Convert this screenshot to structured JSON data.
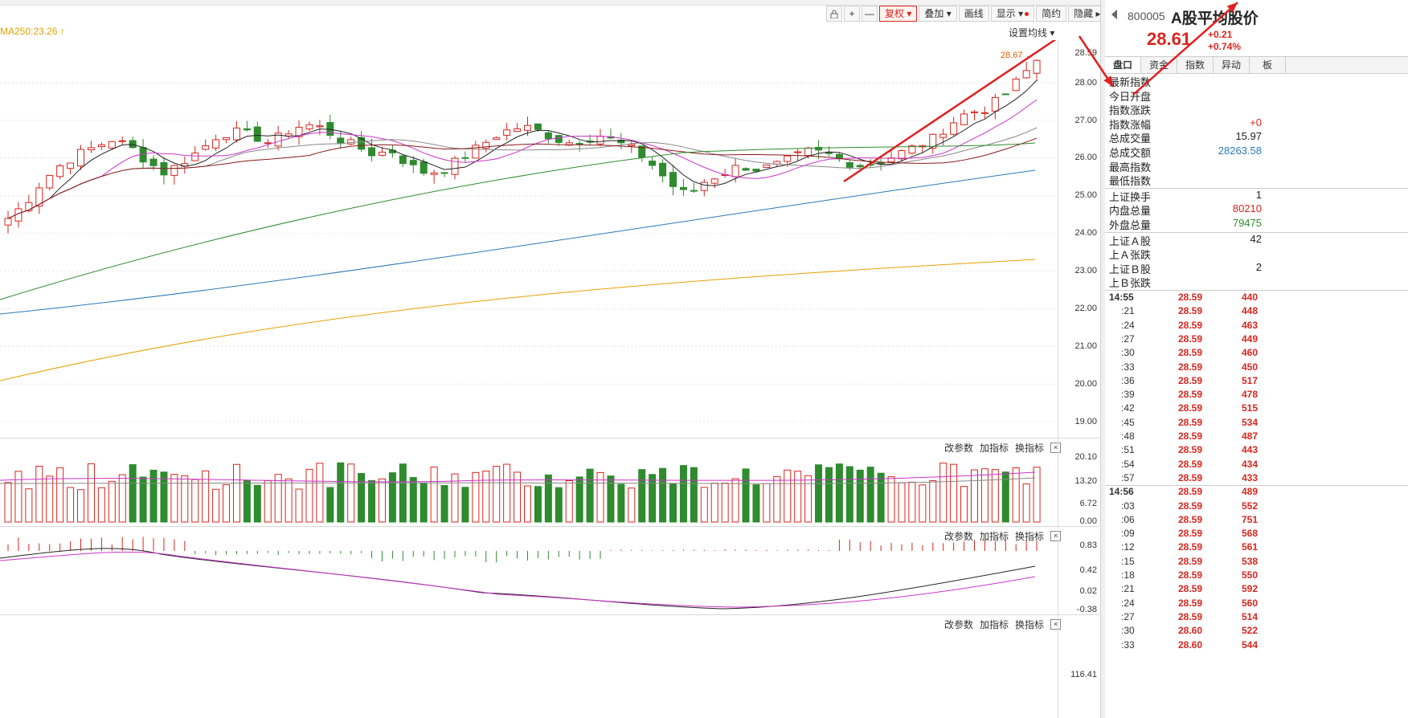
{
  "toolbar": {
    "lock_icon": "lock-icon",
    "zoom_in": "+",
    "zoom_out": "—",
    "fuquan": "复权",
    "diejia": "叠加",
    "huaxian": "画线",
    "xianshi": "显示",
    "jianyue": "简约",
    "yincang": "隐藏",
    "expand_icon": "fullscreen-icon"
  },
  "ma_label": "MA250:23.26 ↑",
  "set_ma": "设置均线 ▾",
  "high_marker": "28.67 →",
  "price_axis": [
    "28.59",
    "28.00",
    "27.00",
    "26.00",
    "25.00",
    "24.00",
    "23.00",
    "22.00",
    "21.00",
    "20.00",
    "19.00"
  ],
  "vol_axis": [
    "20.10",
    "13.20",
    "6.72",
    "0.00"
  ],
  "macd_axis": [
    "0.83",
    "0.42",
    "0.02",
    "-0.38"
  ],
  "bottom_axis": [
    "116.41"
  ],
  "panel_buttons": {
    "gaicanshu": "改参数",
    "jiazhibiao": "加指标",
    "huanzhibiao": "换指标",
    "close": "×"
  },
  "colors": {
    "up": "#d8261e",
    "down": "#2e8b2e",
    "ma5": "#222222",
    "ma10": "#cc33cc",
    "ma20": "#888888",
    "ma30": "#8b1a1a",
    "ma60": "#2e8b2e",
    "ma120": "#2a7ab8",
    "ma250": "#e6a000",
    "annot": "#e02020"
  },
  "quote": {
    "code": "800005",
    "name": "A股平均股价",
    "price": "28.61",
    "change": "+0.21",
    "change_pct": "+0.74%",
    "tabs": [
      "盘口",
      "资金",
      "指数",
      "异动",
      "板"
    ],
    "stats1": [
      {
        "label": "最新指数",
        "value": ""
      },
      {
        "label": "今日开盘",
        "value": ""
      },
      {
        "label": "指数涨跌",
        "value": ""
      },
      {
        "label": "指数涨幅",
        "value": "+0"
      },
      {
        "label": "总成交量",
        "value": "15.97"
      },
      {
        "label": "总成交额",
        "value": "28263.58"
      },
      {
        "label": "最高指数",
        "value": ""
      },
      {
        "label": "最低指数",
        "value": ""
      }
    ],
    "stats2": [
      {
        "label": "上证换手",
        "value": "1"
      },
      {
        "label": "内盘总量",
        "value": "80210"
      },
      {
        "label": "外盘总量",
        "value": "79475"
      }
    ],
    "stats3": [
      {
        "label": "上证Ａ股",
        "value": "42"
      },
      {
        "label": "上Ａ张跌",
        "value": ""
      },
      {
        "label": "上证Ｂ股",
        "value": "2"
      },
      {
        "label": "上Ｂ张跌",
        "value": ""
      }
    ],
    "ticks": [
      {
        "t": "14:55",
        "p": "28.59",
        "v": "440",
        "bold": true
      },
      {
        "t": ":21",
        "p": "28.59",
        "v": "448"
      },
      {
        "t": ":24",
        "p": "28.59",
        "v": "463"
      },
      {
        "t": ":27",
        "p": "28.59",
        "v": "449"
      },
      {
        "t": ":30",
        "p": "28.59",
        "v": "460"
      },
      {
        "t": ":33",
        "p": "28.59",
        "v": "450"
      },
      {
        "t": ":36",
        "p": "28.59",
        "v": "517"
      },
      {
        "t": ":39",
        "p": "28.59",
        "v": "478"
      },
      {
        "t": ":42",
        "p": "28.59",
        "v": "515"
      },
      {
        "t": ":45",
        "p": "28.59",
        "v": "534"
      },
      {
        "t": ":48",
        "p": "28.59",
        "v": "487"
      },
      {
        "t": ":51",
        "p": "28.59",
        "v": "443"
      },
      {
        "t": ":54",
        "p": "28.59",
        "v": "434"
      },
      {
        "t": ":57",
        "p": "28.59",
        "v": "433"
      },
      {
        "t": "14:56",
        "p": "28.59",
        "v": "489",
        "bold": true
      },
      {
        "t": ":03",
        "p": "28.59",
        "v": "552"
      },
      {
        "t": ":06",
        "p": "28.59",
        "v": "751"
      },
      {
        "t": ":09",
        "p": "28.59",
        "v": "568"
      },
      {
        "t": ":12",
        "p": "28.59",
        "v": "561"
      },
      {
        "t": ":15",
        "p": "28.59",
        "v": "538"
      },
      {
        "t": ":18",
        "p": "28.59",
        "v": "550"
      },
      {
        "t": ":21",
        "p": "28.59",
        "v": "592"
      },
      {
        "t": ":24",
        "p": "28.59",
        "v": "560"
      },
      {
        "t": ":27",
        "p": "28.59",
        "v": "514"
      },
      {
        "t": ":30",
        "p": "28.60",
        "v": "522"
      },
      {
        "t": ":33",
        "p": "28.60",
        "v": "544"
      }
    ]
  }
}
